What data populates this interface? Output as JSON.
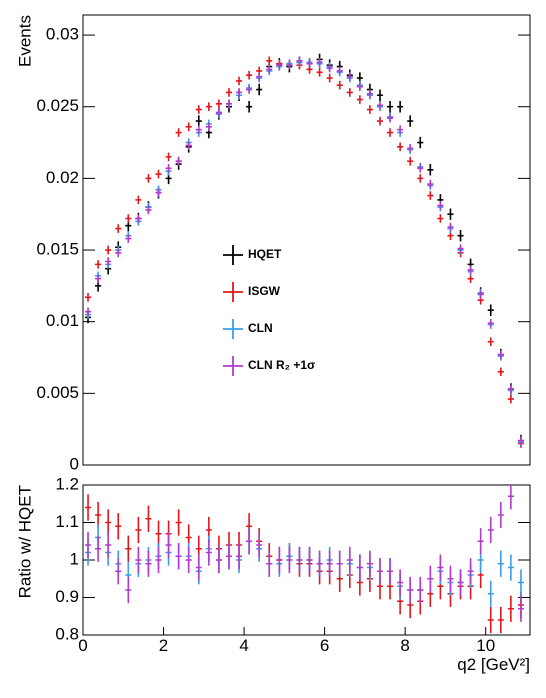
{
  "chart_data": [
    {
      "type": "errorbar",
      "y_label": "Events",
      "xlim": [
        0,
        11.1
      ],
      "ylim": [
        0,
        0.0314
      ],
      "yticks": [
        0,
        0.005,
        0.01,
        0.015,
        0.02,
        0.025,
        0.03
      ],
      "legend": "center-left",
      "x": [
        0.125,
        0.375,
        0.625,
        0.875,
        1.125,
        1.375,
        1.625,
        1.875,
        2.125,
        2.375,
        2.625,
        2.875,
        3.125,
        3.375,
        3.625,
        3.875,
        4.125,
        4.375,
        4.625,
        4.875,
        5.125,
        5.375,
        5.625,
        5.875,
        6.125,
        6.375,
        6.625,
        6.875,
        7.125,
        7.375,
        7.625,
        7.875,
        8.125,
        8.375,
        8.625,
        8.875,
        9.125,
        9.375,
        9.625,
        9.875,
        10.125,
        10.375,
        10.625,
        10.875
      ],
      "series": [
        {
          "name": "HQET",
          "color": "#000000",
          "error": 0.0004,
          "values": [
            0.0103,
            0.0125,
            0.0137,
            0.0152,
            0.0167,
            0.0172,
            0.018,
            0.019,
            0.02,
            0.021,
            0.0222,
            0.024,
            0.0232,
            0.0245,
            0.025,
            0.0258,
            0.025,
            0.0262,
            0.0278,
            0.028,
            0.0278,
            0.0281,
            0.028,
            0.0283,
            0.0279,
            0.0278,
            0.0272,
            0.027,
            0.0262,
            0.0258,
            0.025,
            0.025,
            0.024,
            0.0225,
            0.0206,
            0.0185,
            0.0175,
            0.016,
            0.014,
            0.012,
            0.0108,
            0.0077,
            0.0053,
            0.0017
          ]
        },
        {
          "name": "ISGW",
          "color": "#e3161c",
          "error": 0.0003,
          "values": [
            0.0117,
            0.014,
            0.015,
            0.0165,
            0.0172,
            0.0185,
            0.02,
            0.0203,
            0.0215,
            0.0232,
            0.0236,
            0.0248,
            0.025,
            0.0252,
            0.026,
            0.0268,
            0.0272,
            0.0275,
            0.0282,
            0.028,
            0.028,
            0.0279,
            0.0276,
            0.0274,
            0.027,
            0.0265,
            0.026,
            0.0255,
            0.0248,
            0.024,
            0.0232,
            0.0222,
            0.0212,
            0.02,
            0.0188,
            0.0172,
            0.016,
            0.0148,
            0.013,
            0.0115,
            0.0086,
            0.0065,
            0.0046,
            0.0015
          ]
        },
        {
          "name": "CLN",
          "color": "#3a9ee8",
          "error": 0.0003,
          "values": [
            0.0105,
            0.0132,
            0.014,
            0.015,
            0.016,
            0.017,
            0.018,
            0.0192,
            0.0205,
            0.0212,
            0.0225,
            0.0232,
            0.0238,
            0.0245,
            0.0252,
            0.0258,
            0.0263,
            0.027,
            0.0275,
            0.0278,
            0.028,
            0.0281,
            0.0281,
            0.028,
            0.0278,
            0.0274,
            0.027,
            0.0265,
            0.0258,
            0.025,
            0.0243,
            0.0232,
            0.022,
            0.0208,
            0.0195,
            0.018,
            0.0165,
            0.015,
            0.0135,
            0.012,
            0.0098,
            0.0076,
            0.0052,
            0.0016
          ]
        },
        {
          "name": "CLN R₂ +1σ",
          "color": "#b03ccc",
          "error": 0.0003,
          "values": [
            0.0107,
            0.013,
            0.0142,
            0.0148,
            0.0158,
            0.0172,
            0.0178,
            0.019,
            0.0207,
            0.0212,
            0.0223,
            0.0234,
            0.0236,
            0.0246,
            0.0252,
            0.026,
            0.0262,
            0.0271,
            0.0276,
            0.0279,
            0.0279,
            0.0282,
            0.028,
            0.0281,
            0.0277,
            0.0275,
            0.0271,
            0.0264,
            0.0259,
            0.0251,
            0.0242,
            0.0234,
            0.0221,
            0.0207,
            0.0196,
            0.0181,
            0.0166,
            0.0151,
            0.0136,
            0.0119,
            0.0099,
            0.0077,
            0.0053,
            0.0017
          ]
        }
      ]
    },
    {
      "type": "errorbar",
      "y_label": "Ratio w/ HQET",
      "x_label": "q2 [GeV²]",
      "xlim": [
        0,
        11.1
      ],
      "ylim": [
        0.8,
        1.2
      ],
      "yticks": [
        0.8,
        0.9,
        1,
        1.1,
        1.2
      ],
      "xticks": [
        0,
        2,
        4,
        6,
        8,
        10
      ],
      "x": [
        0.125,
        0.375,
        0.625,
        0.875,
        1.125,
        1.375,
        1.625,
        1.875,
        2.125,
        2.375,
        2.625,
        2.875,
        3.125,
        3.375,
        3.625,
        3.875,
        4.125,
        4.375,
        4.625,
        4.875,
        5.125,
        5.375,
        5.625,
        5.875,
        6.125,
        6.375,
        6.625,
        6.875,
        7.125,
        7.375,
        7.625,
        7.875,
        8.125,
        8.375,
        8.625,
        8.875,
        9.125,
        9.375,
        9.625,
        9.875,
        10.125,
        10.375,
        10.625,
        10.875
      ],
      "series": [
        {
          "color": "#e3161c",
          "error": 0.035,
          "values": [
            1.14,
            1.12,
            1.1,
            1.09,
            1.03,
            1.08,
            1.11,
            1.07,
            1.07,
            1.1,
            1.06,
            1.03,
            1.08,
            1.03,
            1.04,
            1.04,
            1.09,
            1.05,
            1.01,
            1.0,
            1.01,
            0.99,
            0.99,
            0.97,
            0.97,
            0.95,
            0.96,
            0.94,
            0.95,
            0.93,
            0.93,
            0.89,
            0.88,
            0.89,
            0.91,
            0.93,
            0.91,
            0.93,
            0.93,
            0.96,
            0.84,
            0.84,
            0.87,
            0.88
          ]
        },
        {
          "color": "#3a9ee8",
          "error": 0.035,
          "values": [
            1.02,
            1.06,
            1.02,
            0.99,
            0.96,
            0.99,
            1.0,
            1.01,
            1.02,
            1.01,
            1.01,
            0.97,
            1.03,
            1.0,
            1.01,
            1.0,
            1.05,
            1.03,
            0.99,
            0.99,
            1.01,
            1.0,
            1.0,
            0.99,
            1.0,
            0.99,
            0.99,
            0.98,
            0.98,
            0.97,
            0.97,
            0.93,
            0.92,
            0.92,
            0.95,
            0.97,
            0.94,
            0.94,
            0.96,
            1.0,
            0.91,
            0.99,
            0.98,
            0.94
          ]
        },
        {
          "color": "#b03ccc",
          "error": 0.035,
          "values": [
            1.04,
            1.03,
            1.04,
            0.97,
            0.92,
            1.0,
            0.99,
            1.0,
            1.04,
            1.01,
            1.0,
            0.98,
            1.02,
            1.0,
            1.01,
            1.01,
            1.05,
            1.04,
            0.99,
            1.0,
            1.0,
            1.0,
            1.0,
            0.99,
            0.99,
            0.99,
            1.0,
            0.98,
            0.99,
            0.97,
            0.97,
            0.94,
            0.92,
            0.92,
            0.95,
            0.98,
            0.95,
            0.94,
            0.97,
            1.05,
            1.08,
            1.12,
            1.17,
            0.87
          ]
        }
      ]
    }
  ]
}
